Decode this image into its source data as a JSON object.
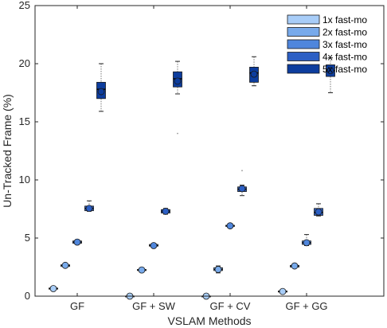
{
  "chart_data": {
    "type": "boxplot",
    "title": "",
    "xlabel": "VSLAM Methods",
    "ylabel": "Un-Tracked Frame (%)",
    "ylim": [
      0,
      25
    ],
    "yticks": [
      0,
      5,
      10,
      15,
      20,
      25
    ],
    "categories": [
      "GF",
      "GF + SW",
      "GF + CV",
      "GF + GG"
    ],
    "grid": false,
    "legend_position": "top-right",
    "series": [
      {
        "name": "1x fast-mo",
        "color": "#a8cdf8",
        "boxes": [
          {
            "min": 0.6,
            "q1": 0.6,
            "median": 0.65,
            "q3": 0.7,
            "max": 0.7,
            "mean": 0.65,
            "outliers": []
          },
          {
            "min": 0.0,
            "q1": 0.0,
            "median": 0.0,
            "q3": 0.0,
            "max": 0.0,
            "mean": 0.0,
            "outliers": []
          },
          {
            "min": 0.0,
            "q1": 0.0,
            "median": 0.0,
            "q3": 0.0,
            "max": 0.0,
            "mean": 0.0,
            "outliers": []
          },
          {
            "min": 0.35,
            "q1": 0.35,
            "median": 0.4,
            "q3": 0.45,
            "max": 0.45,
            "mean": 0.4,
            "outliers": []
          }
        ]
      },
      {
        "name": "2x fast-mo",
        "color": "#78aaeb",
        "boxes": [
          {
            "min": 2.5,
            "q1": 2.55,
            "median": 2.65,
            "q3": 2.7,
            "max": 2.8,
            "mean": 2.65,
            "outliers": []
          },
          {
            "min": 2.1,
            "q1": 2.2,
            "median": 2.25,
            "q3": 2.3,
            "max": 2.4,
            "mean": 2.25,
            "outliers": []
          },
          {
            "min": 2.0,
            "q1": 2.2,
            "median": 2.3,
            "q3": 2.45,
            "max": 2.6,
            "mean": 2.3,
            "outliers": []
          },
          {
            "min": 2.45,
            "q1": 2.5,
            "median": 2.6,
            "q3": 2.65,
            "max": 2.7,
            "mean": 2.6,
            "outliers": []
          }
        ]
      },
      {
        "name": "3x fast-mo",
        "color": "#4f86dc",
        "boxes": [
          {
            "min": 4.5,
            "q1": 4.55,
            "median": 4.65,
            "q3": 4.75,
            "max": 4.85,
            "mean": 4.65,
            "outliers": []
          },
          {
            "min": 4.25,
            "q1": 4.3,
            "median": 4.35,
            "q3": 4.45,
            "max": 4.5,
            "mean": 4.35,
            "outliers": []
          },
          {
            "min": 5.95,
            "q1": 6.0,
            "median": 6.05,
            "q3": 6.1,
            "max": 6.15,
            "mean": 6.05,
            "outliers": []
          },
          {
            "min": 4.35,
            "q1": 4.45,
            "median": 4.6,
            "q3": 4.75,
            "max": 5.3,
            "mean": 4.6,
            "outliers": []
          }
        ]
      },
      {
        "name": "4x fast-mo",
        "color": "#2c5fc4",
        "boxes": [
          {
            "min": 7.3,
            "q1": 7.35,
            "median": 7.55,
            "q3": 7.75,
            "max": 8.2,
            "mean": 7.55,
            "outliers": []
          },
          {
            "min": 7.05,
            "q1": 7.15,
            "median": 7.3,
            "q3": 7.45,
            "max": 7.55,
            "mean": 7.3,
            "outliers": []
          },
          {
            "min": 8.65,
            "q1": 9.0,
            "median": 9.2,
            "q3": 9.4,
            "max": 9.55,
            "mean": 9.25,
            "outliers": [
              10.8
            ]
          },
          {
            "min": 6.9,
            "q1": 6.95,
            "median": 7.2,
            "q3": 7.55,
            "max": 7.95,
            "mean": 7.25,
            "outliers": []
          }
        ]
      },
      {
        "name": "5x fast-mo",
        "color": "#0d3d9e",
        "boxes": [
          {
            "min": 15.9,
            "q1": 17.0,
            "median": 17.8,
            "q3": 18.4,
            "max": 20.0,
            "mean": 17.6,
            "outliers": []
          },
          {
            "min": 17.4,
            "q1": 18.0,
            "median": 18.7,
            "q3": 19.3,
            "max": 20.2,
            "mean": 18.5,
            "outliers": [
              14.0
            ]
          },
          {
            "min": 18.1,
            "q1": 18.4,
            "median": 19.2,
            "q3": 19.7,
            "max": 20.6,
            "mean": 19.1,
            "outliers": []
          },
          {
            "min": 17.5,
            "q1": 18.9,
            "median": 19.4,
            "q3": 19.9,
            "max": 20.5,
            "mean": 19.4,
            "outliers": []
          }
        ]
      }
    ]
  }
}
